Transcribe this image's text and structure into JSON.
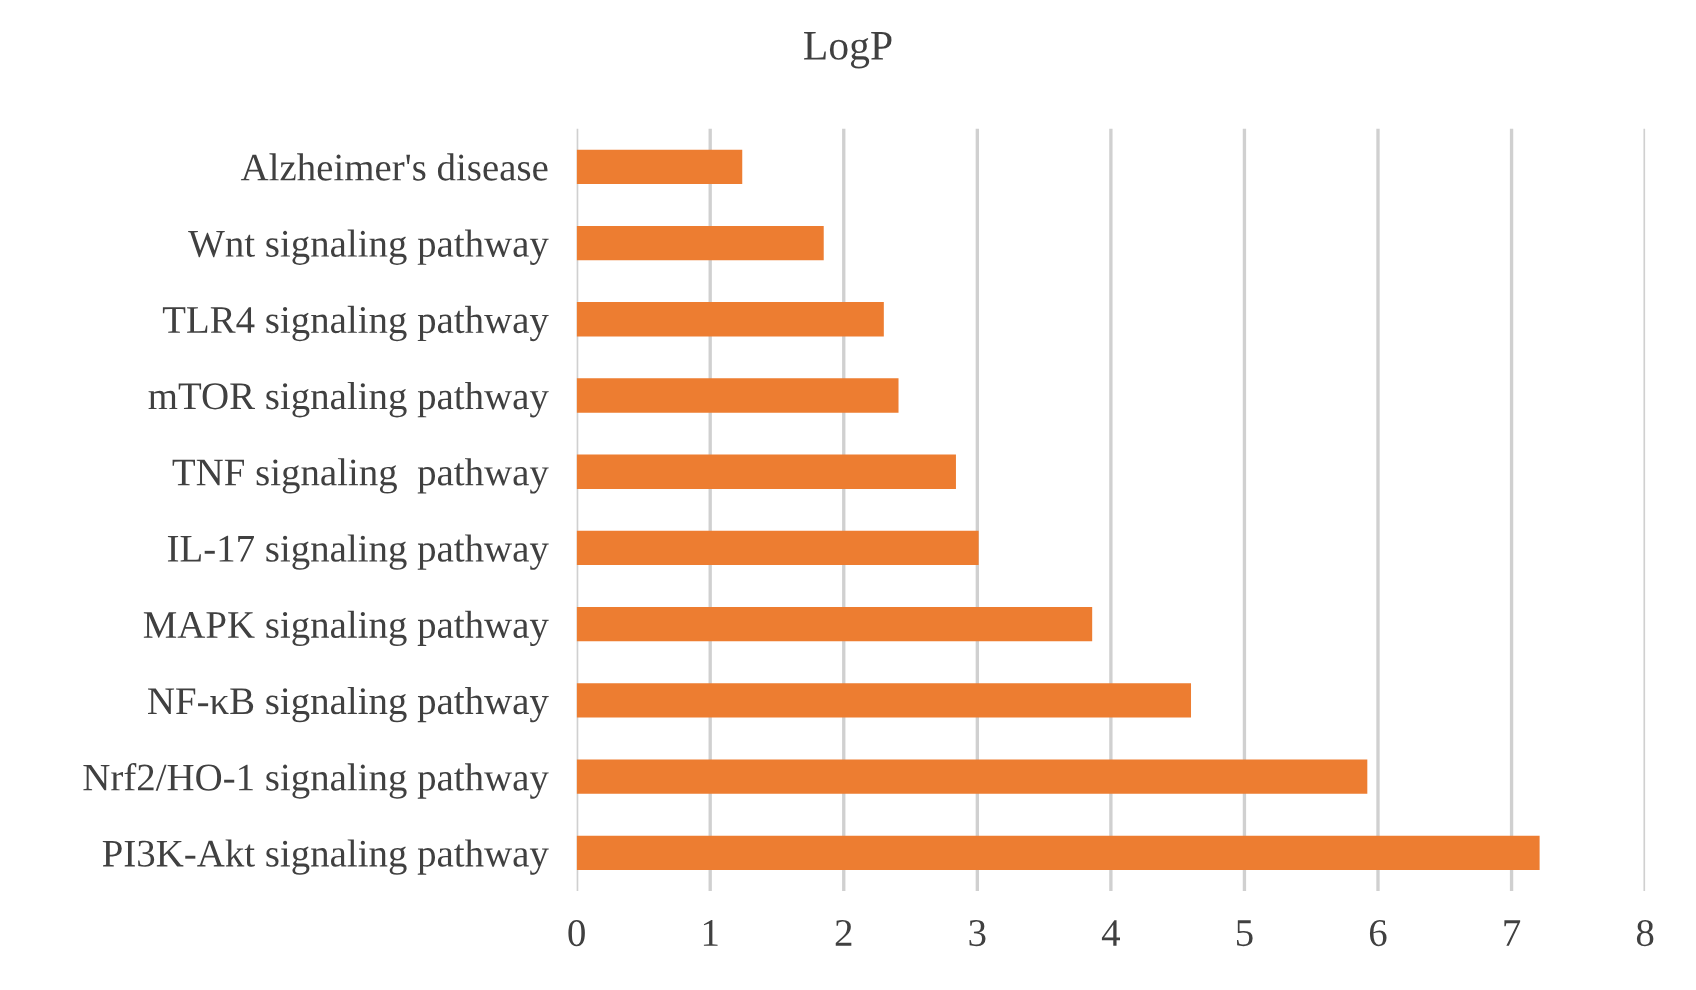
{
  "chart_data": {
    "type": "bar",
    "orientation": "horizontal",
    "title": "LogP",
    "categories": [
      "Alzheimer's disease",
      "Wnt signaling pathway",
      "TLR4 signaling pathway",
      "mTOR signaling pathway",
      "TNF signaling  pathway",
      "IL-17 signaling pathway",
      "MAPK signaling pathway",
      "NF-κB signaling pathway",
      "Nrf2/HO-1 signaling pathway",
      "PI3K-Akt signaling pathway"
    ],
    "values": [
      1.24,
      1.85,
      2.3,
      2.41,
      2.84,
      3.01,
      3.86,
      4.6,
      5.92,
      7.21
    ],
    "color": "#ed7d31",
    "xlim": [
      0,
      8
    ],
    "xticks": [
      0,
      1,
      2,
      3,
      4,
      5,
      6,
      7,
      8
    ],
    "grid": "x"
  }
}
